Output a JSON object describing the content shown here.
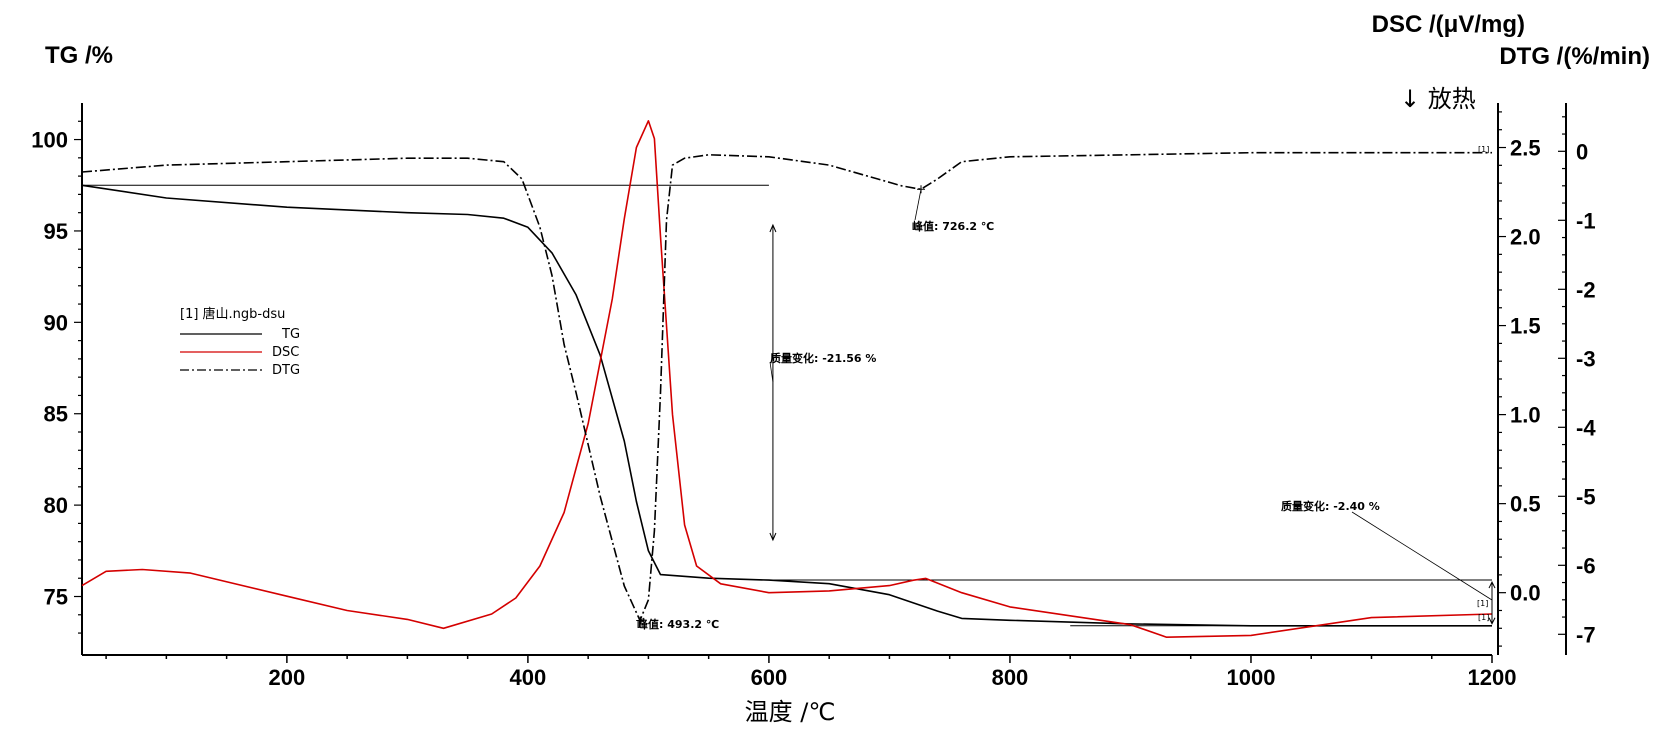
{
  "chart_data": {
    "type": "line",
    "title": "",
    "xlabel": "温度 /℃",
    "xlim": [
      30,
      1200
    ],
    "x_ticks": [
      200,
      400,
      600,
      800,
      1000,
      1200
    ],
    "axes": {
      "tg": {
        "label": "TG /%",
        "ylim": [
          71.8,
          102
        ],
        "ticks": [
          75,
          80,
          85,
          90,
          95,
          100
        ]
      },
      "dsc": {
        "label": "DSC /(μV/mg)",
        "ylim": [
          -0.35,
          2.75
        ],
        "ticks": [
          "0.0",
          "0.5",
          "1.0",
          "1.5",
          "2.0",
          "2.5"
        ]
      },
      "dtg": {
        "label": "DTG /(%/min)",
        "ylim": [
          -7.3,
          0.7
        ],
        "ticks": [
          "0",
          "-1",
          "-2",
          "-3",
          "-4",
          "-5",
          "-6",
          "-7"
        ]
      }
    },
    "exo_label": "↓ 放热",
    "series": [
      {
        "name": "TG",
        "axis": "tg",
        "color": "#000000",
        "style": "solid",
        "x": [
          30,
          100,
          200,
          300,
          350,
          380,
          400,
          420,
          440,
          460,
          480,
          490,
          500,
          510,
          550,
          600,
          650,
          700,
          740,
          760,
          800,
          900,
          1000,
          1100,
          1200
        ],
        "y": [
          97.5,
          96.8,
          96.3,
          96.0,
          95.9,
          95.7,
          95.2,
          93.8,
          91.5,
          88.2,
          83.5,
          80.2,
          77.5,
          76.2,
          76.0,
          75.9,
          75.7,
          75.1,
          74.2,
          73.8,
          73.7,
          73.5,
          73.4,
          73.4,
          73.4
        ]
      },
      {
        "name": "DSC",
        "axis": "dsc",
        "color": "#d40000",
        "style": "solid",
        "x": [
          30,
          50,
          80,
          120,
          200,
          250,
          300,
          330,
          370,
          390,
          410,
          430,
          450,
          470,
          480,
          490,
          500,
          505,
          510,
          520,
          530,
          540,
          560,
          600,
          650,
          700,
          720,
          730,
          760,
          800,
          850,
          900,
          930,
          1000,
          1100,
          1200
        ],
        "y": [
          0.04,
          0.12,
          0.13,
          0.11,
          -0.02,
          -0.1,
          -0.15,
          -0.2,
          -0.12,
          -0.03,
          0.15,
          0.45,
          0.95,
          1.65,
          2.1,
          2.5,
          2.65,
          2.55,
          2.0,
          1.0,
          0.38,
          0.15,
          0.05,
          0.0,
          0.01,
          0.04,
          0.07,
          0.08,
          0.0,
          -0.08,
          -0.13,
          -0.18,
          -0.25,
          -0.24,
          -0.14,
          -0.12
        ]
      },
      {
        "name": "DTG",
        "axis": "dtg",
        "color": "#000000",
        "style": "dashdot",
        "x": [
          30,
          100,
          200,
          300,
          350,
          380,
          395,
          410,
          420,
          430,
          440,
          460,
          480,
          493,
          500,
          505,
          510,
          515,
          520,
          530,
          550,
          600,
          650,
          690,
          710,
          726,
          740,
          760,
          800,
          900,
          1000,
          1100,
          1200
        ],
        "y": [
          -0.3,
          -0.2,
          -0.15,
          -0.1,
          -0.1,
          -0.15,
          -0.4,
          -1.1,
          -1.8,
          -2.8,
          -3.5,
          -5.0,
          -6.3,
          -6.8,
          -6.5,
          -5.5,
          -3.5,
          -1.0,
          -0.2,
          -0.1,
          -0.05,
          -0.08,
          -0.2,
          -0.4,
          -0.5,
          -0.55,
          -0.4,
          -0.15,
          -0.08,
          -0.05,
          -0.02,
          -0.02,
          -0.02
        ]
      }
    ],
    "legend": {
      "placement": "center-left",
      "title": "[1] 唐山.ngb-dsu",
      "entries": [
        "TG",
        "DSC",
        "DTG"
      ]
    },
    "annotations": {
      "peak1": {
        "text": "峰值: 493.2 ℃",
        "x": 493.2
      },
      "peak2": {
        "text": "峰值: 726.2 ℃",
        "x": 726.2
      },
      "mass1": {
        "text": "质量变化: -21.56 %",
        "x": 600
      },
      "mass2": {
        "text": "质量变化: -2.40 %",
        "x": 1200
      },
      "marker": "[1]"
    }
  }
}
